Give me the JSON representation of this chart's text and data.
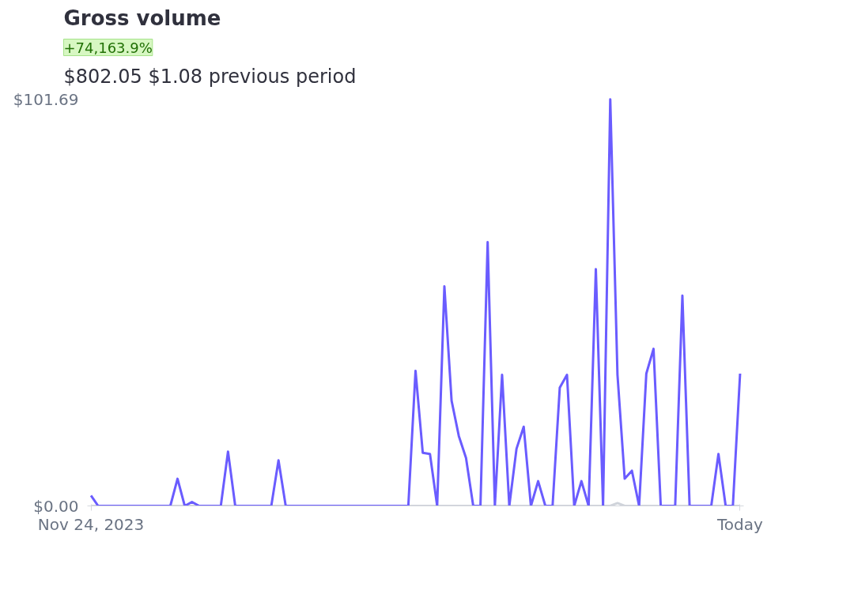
{
  "chart_data": {
    "type": "line",
    "title": "Gross volume",
    "annotations": [
      "+74,163.9%",
      "$802.05",
      "$1.08 previous period"
    ],
    "categories": [
      "Nov 24, 2023",
      null,
      null,
      null,
      null,
      null,
      null,
      null,
      null,
      null,
      null,
      null,
      null,
      null,
      null,
      null,
      null,
      null,
      null,
      null,
      null,
      null,
      null,
      null,
      null,
      null,
      null,
      null,
      null,
      null,
      null,
      null,
      null,
      null,
      null,
      null,
      null,
      null,
      null,
      null,
      null,
      null,
      null,
      null,
      null,
      null,
      null,
      null,
      null,
      null,
      null,
      null,
      null,
      null,
      null,
      null,
      null,
      null,
      null,
      null,
      null,
      null,
      null,
      null,
      null,
      null,
      null,
      null,
      null,
      null,
      null,
      null,
      null,
      null,
      null,
      null,
      null,
      null,
      null,
      null,
      null,
      null,
      null,
      null,
      null,
      null,
      null,
      null,
      null,
      null,
      "Today"
    ],
    "series": [
      {
        "color": "#cfd3da",
        "values": [
          0,
          0,
          0,
          0,
          0,
          0,
          0,
          0,
          0,
          0,
          0,
          0,
          0,
          0,
          0,
          0,
          0,
          0,
          0,
          0,
          0,
          0,
          0,
          0,
          0,
          0,
          0,
          0,
          0,
          0,
          0,
          0,
          0,
          0,
          0,
          0,
          0,
          0,
          0,
          0,
          0,
          0,
          0,
          0,
          0,
          0,
          0,
          0,
          0,
          0,
          0,
          0,
          0,
          0,
          0,
          0,
          0,
          0,
          0,
          0,
          0,
          0,
          0,
          0,
          0,
          0,
          0,
          0,
          0,
          0,
          0,
          0,
          0,
          0.7,
          0,
          0,
          0,
          0,
          0,
          0,
          0,
          0,
          0,
          0,
          0,
          0,
          0,
          0,
          0,
          0,
          0
        ]
      },
      {
        "color": "#6a5cff",
        "values": [
          2.6,
          0,
          0,
          0,
          0,
          0,
          0,
          0,
          0,
          0,
          0,
          0,
          6.8,
          0,
          1,
          0,
          0,
          0,
          0,
          13.6,
          0,
          0,
          0,
          0,
          0,
          0,
          11.4,
          0,
          0,
          0,
          0,
          0,
          0,
          0,
          0,
          0,
          0,
          0,
          0,
          0,
          0,
          0,
          0,
          0,
          0,
          33.8,
          13.3,
          13.0,
          0,
          54.9,
          26.3,
          17.5,
          12.0,
          0,
          0,
          66.0,
          0,
          32.8,
          0,
          14.3,
          19.8,
          0,
          6.2,
          0,
          0,
          29.6,
          32.8,
          0,
          6.2,
          0,
          59.2,
          0,
          101.69,
          32.8,
          6.8,
          8.8,
          0,
          33.1,
          39.3,
          0,
          0,
          0,
          52.6,
          0,
          0,
          0,
          0,
          13.0,
          0,
          0,
          33.1
        ]
      }
    ],
    "ylim": [
      0,
      101.69
    ],
    "yticks": [
      {
        "value": 0,
        "label": "$0.00"
      },
      {
        "value": 101.69,
        "label": "$101.69"
      }
    ],
    "grid": false,
    "marker": "none",
    "line_style": "solid"
  }
}
